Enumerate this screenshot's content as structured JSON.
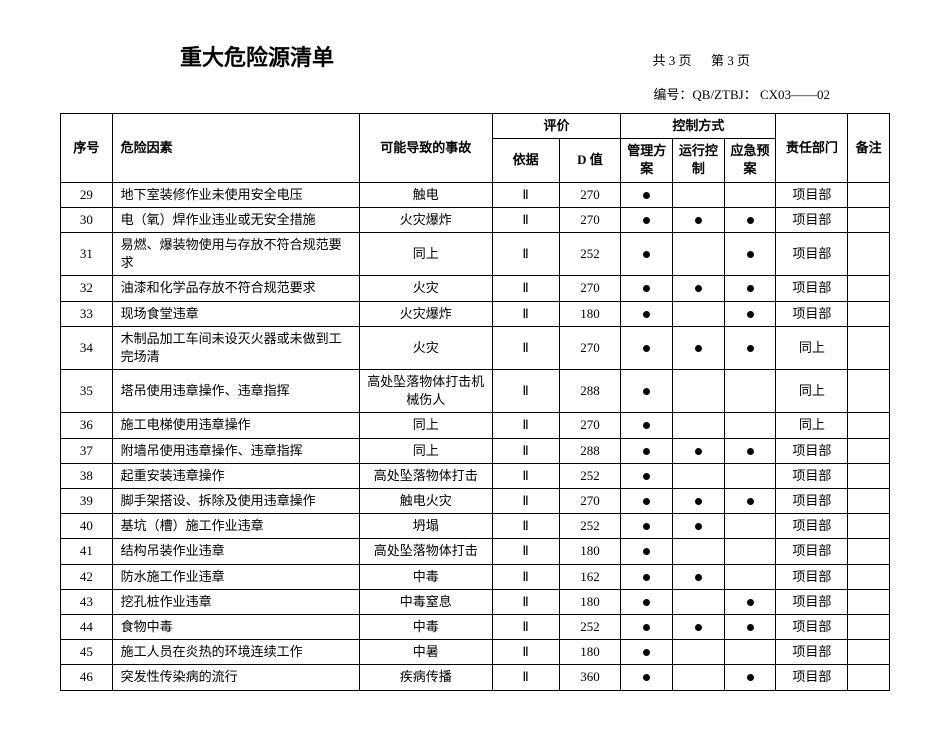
{
  "header": {
    "title": "重大危险源清单",
    "page_total_label": "共 3  页",
    "page_current_label": "第 3 页",
    "doc_number": "编号：QB/ZTBJ：  CX03——02"
  },
  "table": {
    "headers": {
      "seq": "序号",
      "factor": "危险因素",
      "accident": "可能导致的事故",
      "evaluation": "评价",
      "basis": "依据",
      "d_value": "D 值",
      "control_method": "控制方式",
      "plan": "管理方案",
      "ctrl": "运行控制",
      "emergency": "应急预案",
      "dept": "责任部门",
      "note": "备注"
    },
    "rows": [
      {
        "seq": "29",
        "factor": "地下室装修作业未使用安全电压",
        "accident": "触电",
        "basis": "Ⅱ",
        "d_value": "270",
        "plan": true,
        "ctrl": false,
        "emergency": false,
        "dept": "项目部",
        "note": ""
      },
      {
        "seq": "30",
        "factor": "电（氧）焊作业违业或无安全措施",
        "accident": "火灾爆炸",
        "basis": "Ⅱ",
        "d_value": "270",
        "plan": true,
        "ctrl": true,
        "emergency": true,
        "dept": "项目部",
        "note": ""
      },
      {
        "seq": "31",
        "factor": "易燃、爆装物使用与存放不符合规范要求",
        "accident": "同上",
        "basis": "Ⅱ",
        "d_value": "252",
        "plan": true,
        "ctrl": false,
        "emergency": true,
        "dept": "项目部",
        "note": ""
      },
      {
        "seq": "32",
        "factor": "油漆和化学品存放不符合规范要求",
        "accident": "火灾",
        "basis": "Ⅱ",
        "d_value": "270",
        "plan": true,
        "ctrl": true,
        "emergency": true,
        "dept": "项目部",
        "note": ""
      },
      {
        "seq": "33",
        "factor": "现场食堂违章",
        "accident": "火灾爆炸",
        "basis": "Ⅱ",
        "d_value": "180",
        "plan": true,
        "ctrl": false,
        "emergency": true,
        "dept": "项目部",
        "note": ""
      },
      {
        "seq": "34",
        "factor": "木制品加工车间未设灭火器或未做到工完场清",
        "accident": "火灾",
        "basis": "Ⅱ",
        "d_value": "270",
        "plan": true,
        "ctrl": true,
        "emergency": true,
        "dept": "同上",
        "note": ""
      },
      {
        "seq": "35",
        "factor": "塔吊使用违章操作、违章指挥",
        "accident": "高处坠落物体打击机械伤人",
        "basis": "Ⅱ",
        "d_value": "288",
        "plan": true,
        "ctrl": false,
        "emergency": false,
        "dept": "同上",
        "note": ""
      },
      {
        "seq": "36",
        "factor": "施工电梯使用违章操作",
        "accident": "同上",
        "basis": "Ⅱ",
        "d_value": "270",
        "plan": true,
        "ctrl": false,
        "emergency": false,
        "dept": "同上",
        "note": ""
      },
      {
        "seq": "37",
        "factor": "附墙吊使用违章操作、违章指挥",
        "accident": "同上",
        "basis": "Ⅱ",
        "d_value": "288",
        "plan": true,
        "ctrl": true,
        "emergency": true,
        "dept": "项目部",
        "note": ""
      },
      {
        "seq": "38",
        "factor": "起重安装违章操作",
        "accident": "高处坠落物体打击",
        "basis": "Ⅱ",
        "d_value": "252",
        "plan": true,
        "ctrl": false,
        "emergency": false,
        "dept": "项目部",
        "note": ""
      },
      {
        "seq": "39",
        "factor": "脚手架搭设、拆除及使用违章操作",
        "accident": "触电火灾",
        "basis": "Ⅱ",
        "d_value": "270",
        "plan": true,
        "ctrl": true,
        "emergency": true,
        "dept": "项目部",
        "note": ""
      },
      {
        "seq": "40",
        "factor": "基坑（槽）施工作业违章",
        "accident": "坍塌",
        "basis": "Ⅱ",
        "d_value": "252",
        "plan": true,
        "ctrl": true,
        "emergency": false,
        "dept": "项目部",
        "note": ""
      },
      {
        "seq": "41",
        "factor": "结构吊装作业违章",
        "accident": "高处坠落物体打击",
        "basis": "Ⅱ",
        "d_value": "180",
        "plan": true,
        "ctrl": false,
        "emergency": false,
        "dept": "项目部",
        "note": ""
      },
      {
        "seq": "42",
        "factor": "防水施工作业违章",
        "accident": "中毒",
        "basis": "Ⅱ",
        "d_value": "162",
        "plan": true,
        "ctrl": true,
        "emergency": false,
        "dept": "项目部",
        "note": ""
      },
      {
        "seq": "43",
        "factor": "挖孔桩作业违章",
        "accident": "中毒窒息",
        "basis": "Ⅱ",
        "d_value": "180",
        "plan": true,
        "ctrl": false,
        "emergency": true,
        "dept": "项目部",
        "note": ""
      },
      {
        "seq": "44",
        "factor": "食物中毒",
        "accident": "中毒",
        "basis": "Ⅱ",
        "d_value": "252",
        "plan": true,
        "ctrl": true,
        "emergency": true,
        "dept": "项目部",
        "note": ""
      },
      {
        "seq": "45",
        "factor": "施工人员在炎热的环境连续工作",
        "accident": "中暑",
        "basis": "Ⅱ",
        "d_value": "180",
        "plan": true,
        "ctrl": false,
        "emergency": false,
        "dept": "项目部",
        "note": ""
      },
      {
        "seq": "46",
        "factor": "突发性传染病的流行",
        "accident": "疾病传播",
        "basis": "Ⅱ",
        "d_value": "360",
        "plan": true,
        "ctrl": false,
        "emergency": true,
        "dept": "项目部",
        "note": ""
      }
    ]
  }
}
